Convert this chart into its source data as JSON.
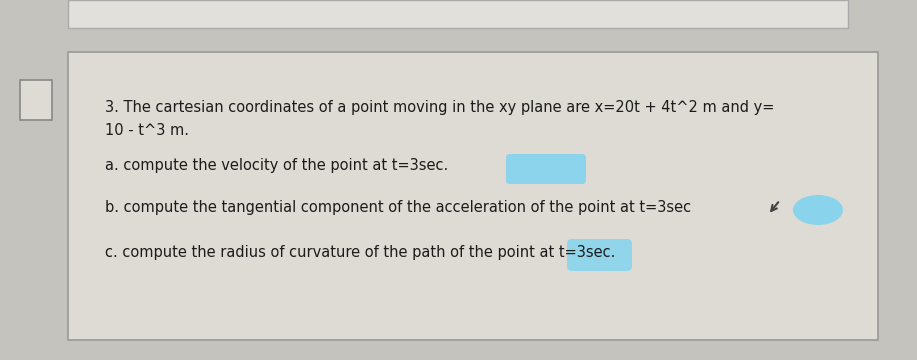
{
  "background_color": "#c5c3be",
  "box_color": "#dedad4",
  "box_border_color": "#999999",
  "top_strip_color": "#e2e0db",
  "top_strip_border": "#aaaaaa",
  "text_color": "#1c1c1c",
  "highlight_color": "#7ed4f0",
  "cursor_color": "#333333",
  "title_line1": "3. The cartesian coordinates of a point moving in the xy plane are x=20t + 4t^2 m and y=",
  "title_line2": "10 - t^3 m.",
  "line_a": "a. compute the velocity of the point at t=3sec.",
  "line_b": "b. compute the tangential component of the acceleration of the point at t=3sec",
  "line_c": "c. compute the radius of curvature of the path of the point at t=3sec.",
  "font_size": 10.5,
  "fig_width": 9.17,
  "fig_height": 3.6,
  "dpi": 100
}
